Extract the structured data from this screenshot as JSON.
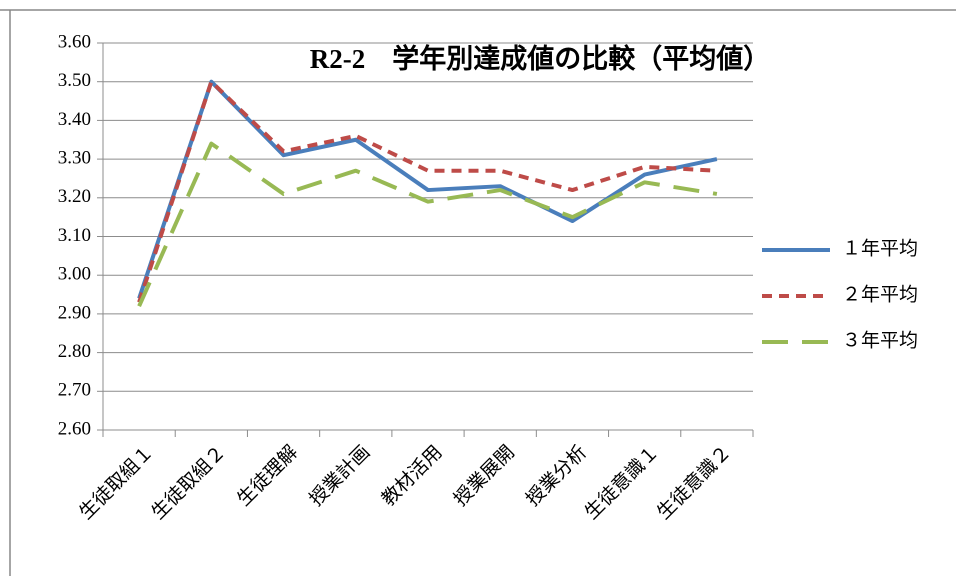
{
  "chart_data": {
    "type": "line",
    "title": "R2-2　学年別達成値の比較（平均値）",
    "categories": [
      "生徒取組１",
      "生徒取組２",
      "生徒理解",
      "授業計画",
      "教材活用",
      "授業展開",
      "授業分析",
      "生徒意識１",
      "生徒意識２"
    ],
    "series": [
      {
        "name": "１年平均",
        "color": "#4a7ebb",
        "line_style": "solid",
        "values": [
          2.94,
          3.5,
          3.31,
          3.35,
          3.22,
          3.23,
          3.14,
          3.26,
          3.3
        ]
      },
      {
        "name": "２年平均",
        "color": "#be4b48",
        "line_style": "dash",
        "values": [
          2.93,
          3.5,
          3.32,
          3.36,
          3.27,
          3.27,
          3.22,
          3.28,
          3.27
        ]
      },
      {
        "name": "３年平均",
        "color": "#98b954",
        "line_style": "longdash",
        "values": [
          2.92,
          3.34,
          3.21,
          3.27,
          3.19,
          3.22,
          3.15,
          3.24,
          3.21
        ]
      }
    ],
    "ylim": [
      2.6,
      3.6
    ],
    "yticks": [
      {
        "value": 2.6,
        "label": "2.60"
      },
      {
        "value": 2.7,
        "label": "2.70"
      },
      {
        "value": 2.8,
        "label": "2.80"
      },
      {
        "value": 2.9,
        "label": "2.90"
      },
      {
        "value": 3.0,
        "label": "3.00"
      },
      {
        "value": 3.1,
        "label": "3.10"
      },
      {
        "value": 3.2,
        "label": "3.20"
      },
      {
        "value": 3.3,
        "label": "3.30"
      },
      {
        "value": 3.4,
        "label": "3.40"
      },
      {
        "value": 3.5,
        "label": "3.50"
      },
      {
        "value": 3.6,
        "label": "3.60"
      }
    ],
    "grid": true,
    "legend": "right"
  }
}
